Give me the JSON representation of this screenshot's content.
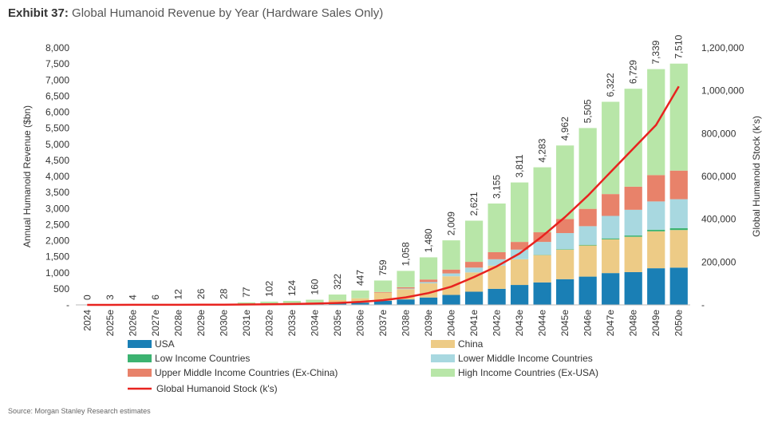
{
  "header": {
    "exhibit": "Exhibit 37:",
    "title": "Global Humanoid Revenue by Year (Hardware Sales Only)"
  },
  "footer": {
    "source": "Source: Morgan Stanley Research estimates"
  },
  "chart_data": {
    "type": "bar",
    "stacked": true,
    "categories": [
      "2024",
      "2025e",
      "2026e",
      "2027e",
      "2028e",
      "2029e",
      "2030e",
      "2031e",
      "2032e",
      "2033e",
      "2034e",
      "2035e",
      "2036e",
      "2037e",
      "2038e",
      "2039e",
      "2040e",
      "2041e",
      "2042e",
      "2043e",
      "2044e",
      "2045e",
      "2046e",
      "2047e",
      "2048e",
      "2049e",
      "2050e"
    ],
    "ylabel": "Annual Humanoid Revenue ($bn)",
    "y2label": "Global Humanoid Stock (k's)",
    "ylim": [
      0,
      8000
    ],
    "y2lim": [
      0,
      1200000
    ],
    "yticks": [
      "-",
      "500",
      "1,000",
      "1,500",
      "2,000",
      "2,500",
      "3,000",
      "3,500",
      "4,000",
      "4,500",
      "5,000",
      "5,500",
      "6,000",
      "6,500",
      "7,000",
      "7,500",
      "8,000"
    ],
    "y2ticks": [
      "-",
      "200,000",
      "400,000",
      "600,000",
      "800,000",
      "1,000,000",
      "1,200,000"
    ],
    "totals": [
      0,
      3,
      4,
      6,
      12,
      26,
      28,
      77,
      102,
      124,
      160,
      322,
      447,
      759,
      1058,
      1480,
      2009,
      2621,
      3155,
      3811,
      4283,
      4962,
      5505,
      6322,
      6729,
      7339,
      7510
    ],
    "total_labels": [
      "0",
      "3",
      "4",
      "6",
      "12",
      "26",
      "28",
      "77",
      "102",
      "124",
      "160",
      "322",
      "447",
      "759",
      "1,058",
      "1,480",
      "2,009",
      "2,621",
      "3,155",
      "3,811",
      "4,283",
      "4,962",
      "5,505",
      "6,322",
      "6,729",
      "7,339",
      "7,510"
    ],
    "series": [
      {
        "name": "USA",
        "color": "#1a7fb5",
        "values": [
          0,
          1,
          1,
          2,
          3,
          6,
          6,
          16,
          20,
          24,
          30,
          55,
          70,
          130,
          170,
          230,
          310,
          410,
          500,
          620,
          700,
          800,
          880,
          990,
          1020,
          1140,
          1160
        ]
      },
      {
        "name": "China",
        "color": "#edcb86",
        "values": [
          0,
          1,
          1,
          1,
          3,
          6,
          7,
          20,
          30,
          36,
          46,
          95,
          135,
          250,
          320,
          440,
          580,
          600,
          720,
          800,
          850,
          920,
          970,
          1050,
          1100,
          1150,
          1170
        ]
      },
      {
        "name": "Low Income Countries",
        "color": "#3cb371",
        "values": [
          0,
          0,
          0,
          0,
          0,
          0,
          0,
          0,
          0,
          0,
          0,
          0,
          0,
          0,
          0,
          0,
          0,
          0,
          0,
          0,
          10,
          15,
          20,
          30,
          40,
          50,
          60
        ]
      },
      {
        "name": "Lower Middle Income Countries",
        "color": "#a8d8e0",
        "values": [
          0,
          0,
          0,
          0,
          0,
          0,
          0,
          0,
          0,
          0,
          0,
          0,
          0,
          0,
          20,
          40,
          90,
          150,
          200,
          300,
          400,
          500,
          580,
          700,
          800,
          880,
          900
        ]
      },
      {
        "name": "Upper Middle Income Countries (Ex-China)",
        "color": "#e8826a",
        "values": [
          0,
          0,
          0,
          0,
          0,
          0,
          0,
          0,
          0,
          0,
          0,
          0,
          0,
          20,
          40,
          80,
          120,
          180,
          220,
          240,
          300,
          440,
          540,
          680,
          720,
          820,
          890
        ]
      },
      {
        "name": "High Income Countries (Ex-USA)",
        "color": "#b8e6a8",
        "values": [
          0,
          1,
          2,
          3,
          6,
          14,
          15,
          41,
          52,
          64,
          84,
          172,
          242,
          359,
          508,
          690,
          909,
          1281,
          1515,
          1851,
          2023,
          2287,
          2515,
          2872,
          3049,
          3299,
          3330
        ]
      }
    ],
    "line": {
      "name": "Global Humanoid Stock (k's)",
      "color": "#e8231f",
      "axis": "right",
      "values": [
        0,
        100,
        200,
        300,
        500,
        800,
        1200,
        1800,
        2700,
        4000,
        6000,
        9000,
        14000,
        22000,
        35000,
        55000,
        85000,
        130000,
        180000,
        240000,
        320000,
        410000,
        510000,
        620000,
        730000,
        840000,
        1020000
      ]
    },
    "legend_position": "bottom",
    "grid": false
  }
}
